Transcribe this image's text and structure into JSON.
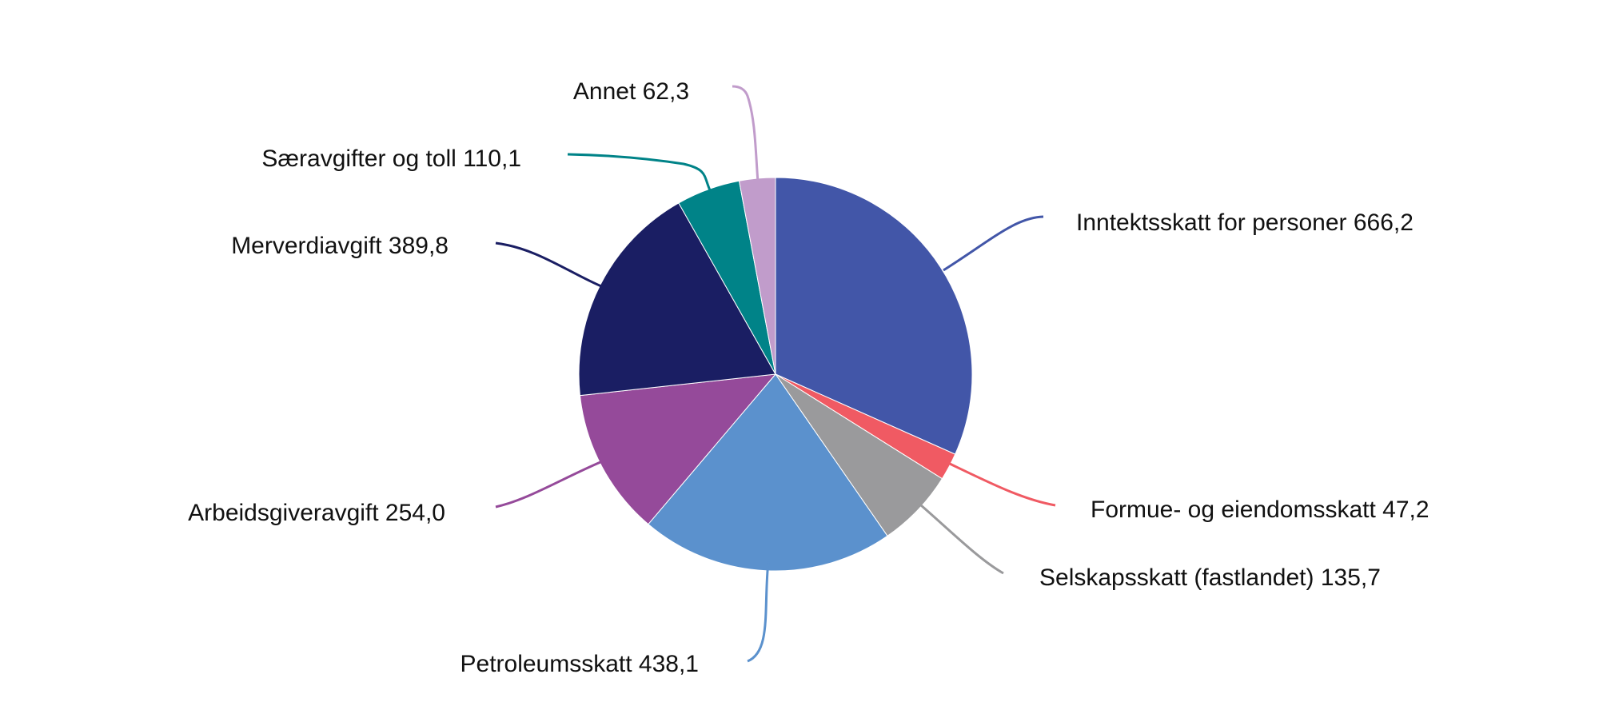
{
  "chart_data": {
    "type": "pie",
    "title": "",
    "unit": "",
    "slices": [
      {
        "name": "Inntektsskatt for personer",
        "value": 666.2,
        "label": "Inntektsskatt for personer 666,2",
        "color": "#4256a8"
      },
      {
        "name": "Formue- og eiendomsskatt",
        "value": 47.2,
        "label": "Formue- og eiendomsskatt 47,2",
        "color": "#f05a63"
      },
      {
        "name": "Selskapsskatt (fastlandet)",
        "value": 135.7,
        "label": "Selskapsskatt (fastlandet) 135,7",
        "color": "#9a9a9c"
      },
      {
        "name": "Petroleumsskatt",
        "value": 438.1,
        "label": "Petroleumsskatt 438,1",
        "color": "#5b91cd"
      },
      {
        "name": "Arbeidsgiveravgift",
        "value": 254.0,
        "label": "Arbeidsgiveravgift 254,0",
        "color": "#954a9a"
      },
      {
        "name": "Merverdiavgift",
        "value": 389.8,
        "label": "Merverdiavgift 389,8",
        "color": "#1a1e63"
      },
      {
        "name": "Særavgifter og toll",
        "value": 110.1,
        "label": "Særavgifter og toll 110,1",
        "color": "#008388"
      },
      {
        "name": "Annet",
        "value": 62.3,
        "label": "Annet 62,3",
        "color": "#c19ccb"
      }
    ]
  }
}
